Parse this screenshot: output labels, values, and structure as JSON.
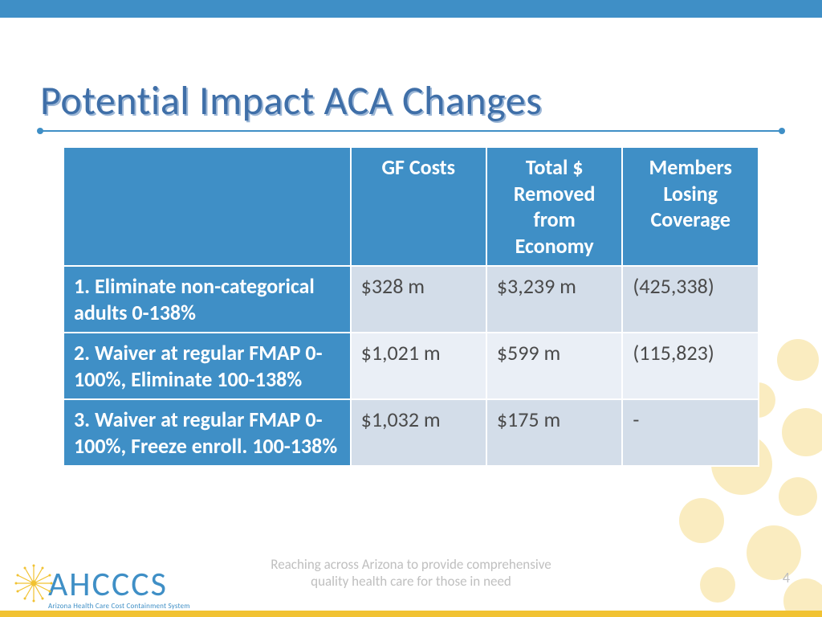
{
  "colors": {
    "top_bar": "#3f8fc6",
    "title_text": "#3f6fa8",
    "title_shadow": "#9db7d6",
    "underline": "#3f8fc6",
    "dot": "#3f8fc6",
    "th_bg": "#3f8fc6",
    "th_text": "#ffffff",
    "row1_label_bg": "#3f8fc6",
    "row1_data_bg": "#d3dde9",
    "row2_label_bg": "#3f8fc6",
    "row2_data_bg": "#eaeff6",
    "row3_label_bg": "#3f8fc6",
    "row3_data_bg": "#d3dde9",
    "cell_text": "#4a4a4a",
    "footer_text": "#bfbfbf",
    "logo_text": "#3f8fc6",
    "logo_sub": "#3f8fc6",
    "gold_bar": "#f1c232",
    "burst": "#f1c232",
    "bg_dot": "#f6de8e"
  },
  "title": "Potential Impact ACA Changes",
  "table": {
    "headers": [
      "",
      "GF Costs",
      "Total $ Removed from Economy",
      "Members Losing Coverage"
    ],
    "rows": [
      {
        "label": "1. Eliminate non-categorical adults 0-138%",
        "gf": "$328 m",
        "removed": "$3,239 m",
        "members": "(425,338)"
      },
      {
        "label": "2. Waiver at regular FMAP 0-100%, Eliminate 100-138%",
        "gf": "$1,021 m",
        "removed": "$599 m",
        "members": "(115,823)"
      },
      {
        "label": "3. Waiver at regular FMAP 0-100%, Freeze enroll. 100-138%",
        "gf": "$1,032 m",
        "removed": "$175 m",
        "members": " -"
      }
    ]
  },
  "footer": {
    "tagline_l1": "Reaching across Arizona to provide comprehensive",
    "tagline_l2": "quality health care for those in need",
    "page": "4"
  },
  "logo": {
    "main": "AHCCCS",
    "sub": "Arizona Health Care Cost Containment System"
  }
}
